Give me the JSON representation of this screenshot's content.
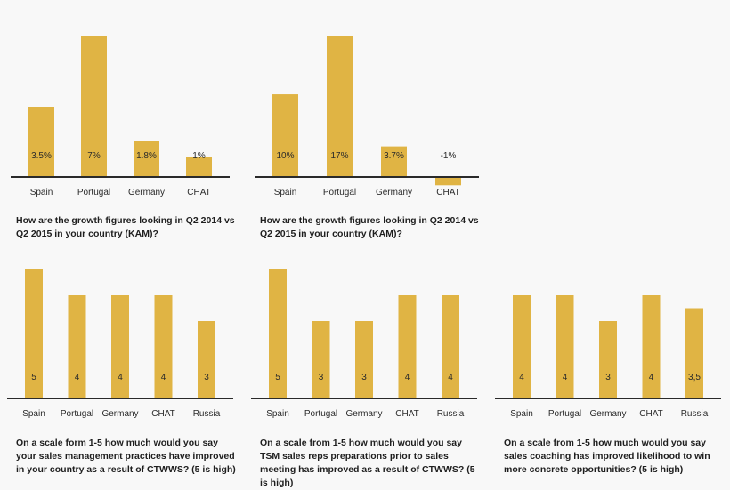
{
  "colors": {
    "bar": "#e0b444",
    "baseline": "#2a2a2a",
    "text": "#1e1e1e",
    "background": "#f8f8f8"
  },
  "chart_data": [
    {
      "type": "bar",
      "title": "How are the growth figures looking in Q2 2014 vs Q2 2015 in your country (KAM)?",
      "categories": [
        "Spain",
        "Portugal",
        "Germany",
        "CHAT"
      ],
      "values": [
        3.5,
        7,
        1.8,
        1
      ],
      "data_labels": [
        "3.5%",
        "7%",
        "1.8%",
        "1%"
      ],
      "ylim": [
        0,
        7
      ]
    },
    {
      "type": "bar",
      "title": "How are the growth figures looking in Q2 2014 vs Q2 2015 in your country (KAM)?",
      "categories": [
        "Spain",
        "Portugal",
        "Germany",
        "CHAT"
      ],
      "values": [
        10,
        17,
        3.7,
        -1
      ],
      "data_labels": [
        "10%",
        "17%",
        "3.7%",
        "-1%"
      ],
      "ylim": [
        -1,
        17
      ]
    },
    {
      "type": "bar",
      "title": "On a scale form 1-5 how much would you say your sales management practices have improved in your country as a result of CTWWS? (5 is high)",
      "categories": [
        "Spain",
        "Portugal",
        "Germany",
        "CHAT",
        "Russia"
      ],
      "values": [
        5,
        4,
        4,
        4,
        3
      ],
      "data_labels": [
        "5",
        "4",
        "4",
        "4",
        "3"
      ],
      "ylim": [
        0,
        5
      ]
    },
    {
      "type": "bar",
      "title": "On a  scale from 1-5 how much would you say TSM sales reps preparations prior to sales meeting has improved as a result of CTWWS? (5 is high)",
      "categories": [
        "Spain",
        "Portugal",
        "Germany",
        "CHAT",
        "Russia"
      ],
      "values": [
        5,
        3,
        3,
        4,
        4
      ],
      "data_labels": [
        "5",
        "3",
        "3",
        "4",
        "4"
      ],
      "ylim": [
        0,
        5
      ]
    },
    {
      "type": "bar",
      "title": "On a scale from 1-5 how much would you say sales coaching has improved likelihood to win more concrete opportunities? (5 is high)",
      "categories": [
        "Spain",
        "Portugal",
        "Germany",
        "CHAT",
        "Russia"
      ],
      "values": [
        4,
        4,
        3,
        4,
        3.5
      ],
      "data_labels": [
        "4",
        "4",
        "3",
        "4",
        "3,5"
      ],
      "ylim": [
        0,
        5
      ]
    }
  ]
}
